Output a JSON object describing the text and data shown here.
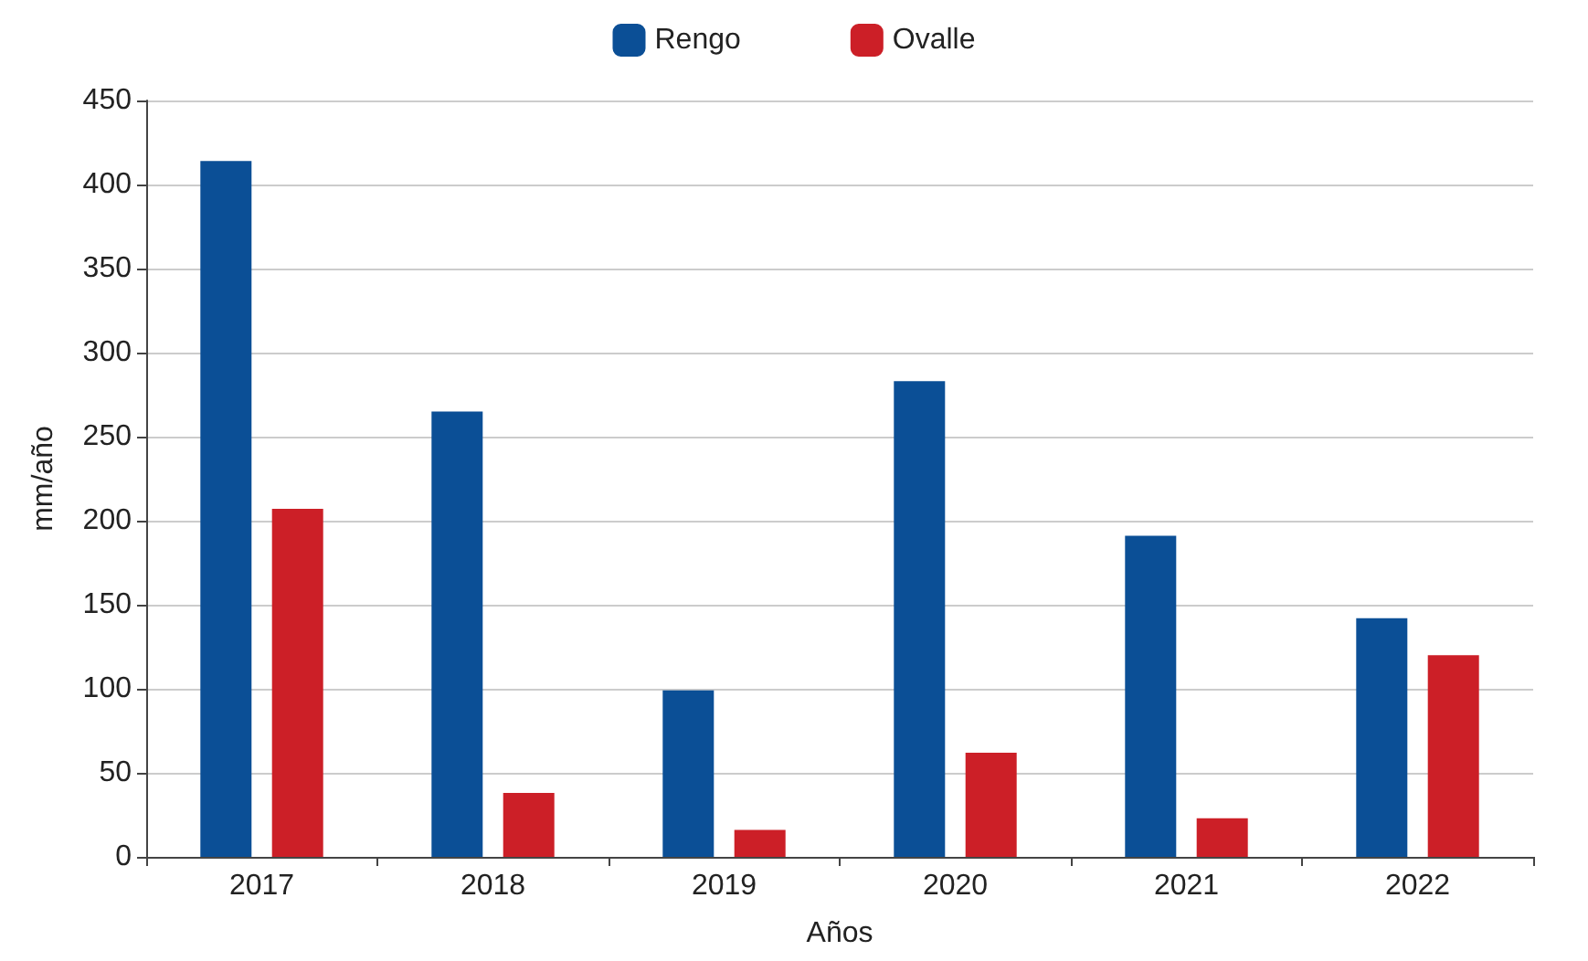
{
  "chart_data": {
    "type": "bar",
    "xlabel": "Años",
    "ylabel": "mm/año",
    "categories": [
      "2017",
      "2018",
      "2019",
      "2020",
      "2021",
      "2022"
    ],
    "series": [
      {
        "name": "Rengo",
        "color": "#0b4f96",
        "values": [
          414,
          265,
          99,
          283,
          191,
          142
        ]
      },
      {
        "name": "Ovalle",
        "color": "#cc1f27",
        "values": [
          207,
          38,
          16,
          62,
          23,
          120
        ]
      }
    ],
    "ylim": [
      0,
      450
    ],
    "yticks": [
      0,
      50,
      100,
      150,
      200,
      250,
      300,
      350,
      400,
      450
    ],
    "grid": "y",
    "legend": "top"
  }
}
